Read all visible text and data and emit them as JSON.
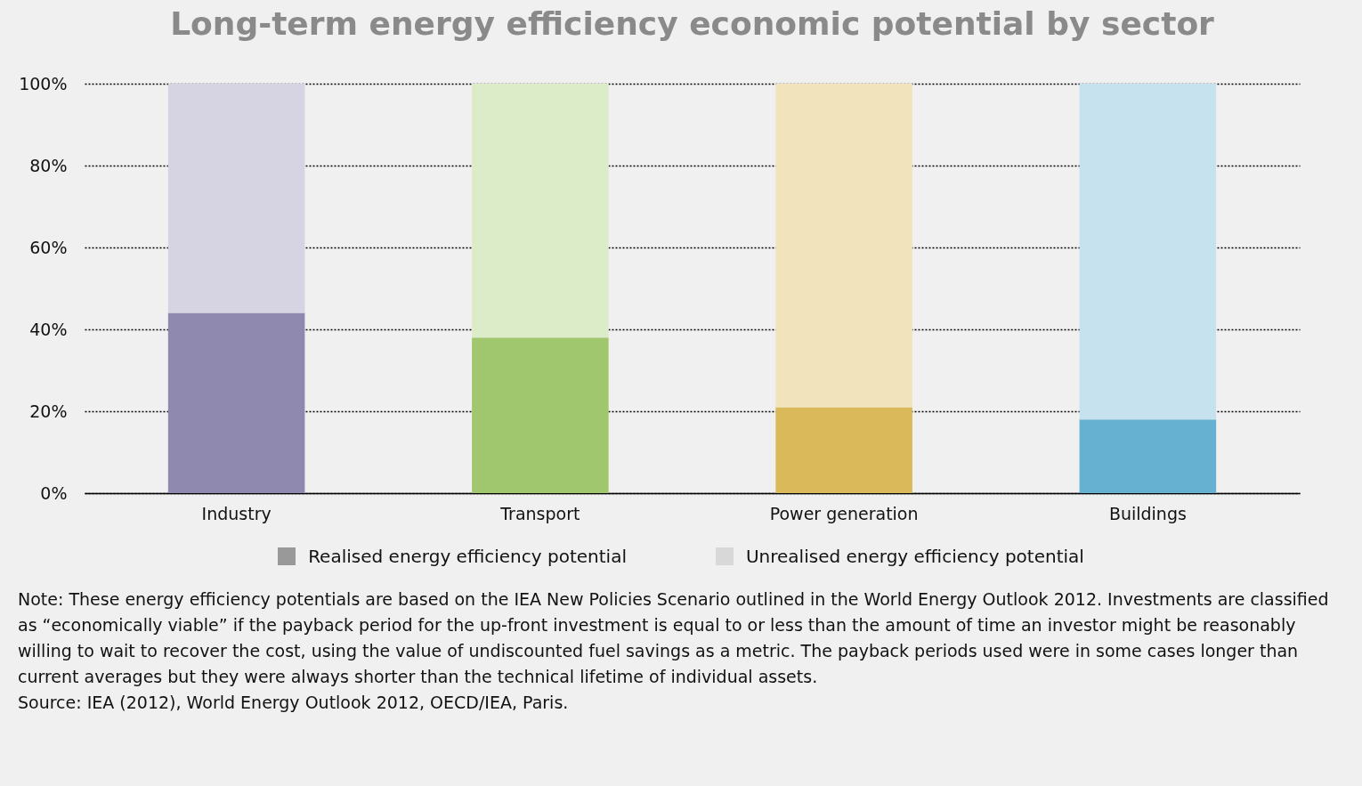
{
  "chart_data": {
    "type": "bar",
    "title": "Long-term energy efficiency economic potential by sector",
    "categories": [
      "Industry",
      "Transport",
      "Power generation",
      "Buildings"
    ],
    "stacked": true,
    "series": [
      {
        "name": "Realised energy efficiency potential",
        "color": "#999999",
        "colors": [
          "#8f89b0",
          "#a0c76e",
          "#d9b95a",
          "#66b1d1"
        ],
        "values": [
          44,
          38,
          21,
          18
        ]
      },
      {
        "name": "Unrealised energy efficiency potential",
        "color": "#d8d8d8",
        "colors": [
          "#d6d3e3",
          "#dcebc8",
          "#f1e3bb",
          "#c6e2ee"
        ],
        "values": [
          56,
          62,
          79,
          82
        ]
      }
    ],
    "ylim": [
      0,
      100
    ],
    "yticks": [
      {
        "value": 0,
        "label": "0%"
      },
      {
        "value": 20,
        "label": "20%"
      },
      {
        "value": 40,
        "label": "40%"
      },
      {
        "value": 60,
        "label": "60%"
      },
      {
        "value": 80,
        "label": "80%"
      },
      {
        "value": 100,
        "label": "100%"
      }
    ],
    "grid": "y",
    "legend": "bottom",
    "annotations": [
      "Note: These energy efficiency potentials are based on the IEA New Policies Scenario outlined in the World Energy Outlook 2012. Investments are classified as “economically viable” if the payback period for the up-front investment is equal to or less than the amount of time an investor might be reasonably willing to wait to recover the cost, using the value of undiscounted fuel savings as a metric. The payback periods used were in some cases longer than current averages but they were always shorter than the technical lifetime of individual assets.",
      "Source: IEA (2012), World Energy Outlook 2012, OECD/IEA, Paris."
    ]
  }
}
